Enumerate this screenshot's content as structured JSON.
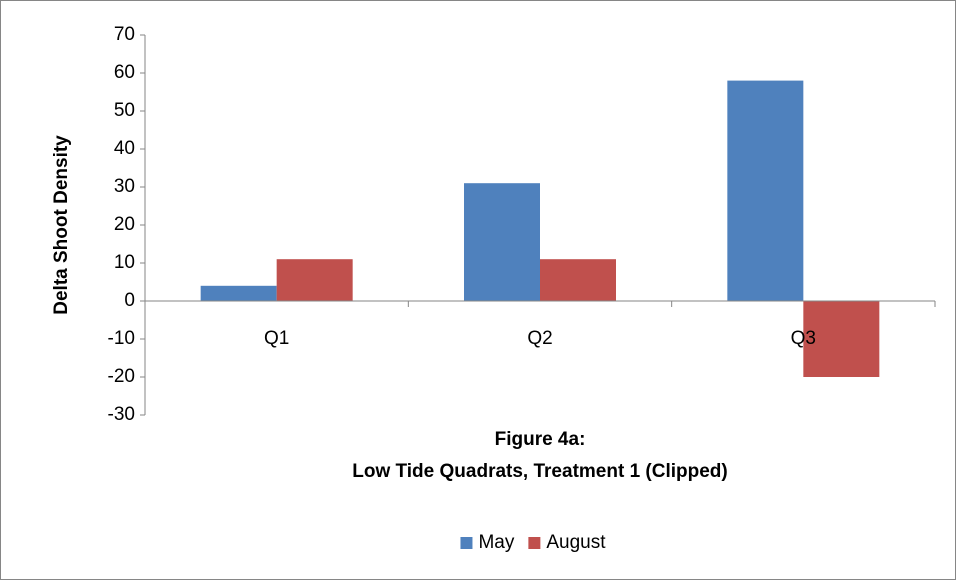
{
  "chart_data": {
    "type": "bar",
    "y_label": "Delta Shoot Density",
    "x_label": [
      "Figure 4a:",
      "Low Tide Quadrats, Treatment 1 (Clipped)"
    ],
    "categories": [
      "Q1",
      "Q2",
      "Q3"
    ],
    "series": [
      {
        "name": "May",
        "color": "#4f81bd",
        "values": [
          4,
          31,
          58
        ]
      },
      {
        "name": "August",
        "color": "#c0504d",
        "values": [
          11,
          11,
          -20
        ]
      }
    ],
    "ylim": [
      -30,
      70
    ],
    "yticks": [
      -30,
      -20,
      -10,
      0,
      10,
      20,
      30,
      40,
      50,
      60,
      70
    ],
    "grid": false,
    "legend": "bottom"
  }
}
